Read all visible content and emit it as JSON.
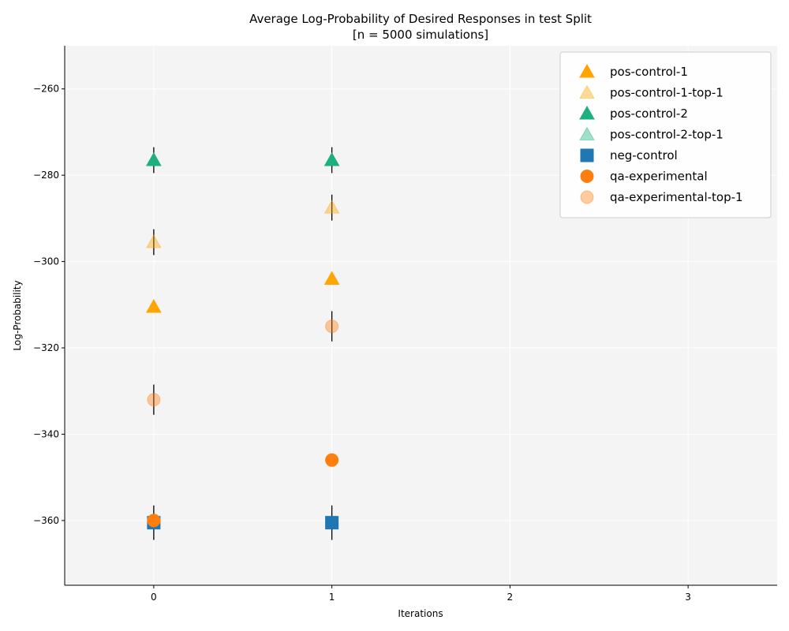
{
  "chart_data": {
    "type": "scatter",
    "title_line1": "Average Log-Probability of Desired Responses in test Split",
    "title_line2": "[n = 5000 simulations]",
    "xlabel": "Iterations",
    "ylabel": "Log-Probability",
    "xlim": [
      -0.5,
      3.5
    ],
    "ylim": [
      -375,
      -250
    ],
    "xticks": [
      0,
      1,
      2,
      3
    ],
    "xtick_labels": [
      "0",
      "1",
      "2",
      "3"
    ],
    "yticks": [
      -260,
      -280,
      -300,
      -320,
      -340,
      -360
    ],
    "ytick_labels": [
      "−260",
      "−280",
      "−300",
      "−320",
      "−340",
      "−360"
    ],
    "grid": true,
    "legend_position": "top-right",
    "series": [
      {
        "name": "pos-control-1",
        "marker": "triangle",
        "color": "#FFA500",
        "opacity": 1.0,
        "x": [
          0,
          1
        ],
        "y": [
          -310.5,
          -304.0
        ],
        "err": [
          1.0,
          1.0
        ]
      },
      {
        "name": "pos-control-1-top-1",
        "marker": "triangle",
        "color": "#FFA500",
        "opacity": 0.4,
        "x": [
          0,
          1
        ],
        "y": [
          -295.5,
          -287.5
        ],
        "err": [
          3.0,
          3.0
        ]
      },
      {
        "name": "pos-control-2",
        "marker": "triangle",
        "color": "#1CB07F",
        "opacity": 1.0,
        "x": [
          0,
          1
        ],
        "y": [
          -276.5,
          -276.5
        ],
        "err": [
          3.0,
          3.0
        ]
      },
      {
        "name": "pos-control-2-top-1",
        "marker": "triangle",
        "color": "#1CB07F",
        "opacity": 0.4,
        "x": [],
        "y": [],
        "err": []
      },
      {
        "name": "neg-control",
        "marker": "square",
        "color": "#1F77B4",
        "opacity": 1.0,
        "x": [
          0,
          1
        ],
        "y": [
          -360.5,
          -360.5
        ],
        "err": [
          4.0,
          4.0
        ]
      },
      {
        "name": "qa-experimental",
        "marker": "circle",
        "color": "#FF7F0E",
        "opacity": 1.0,
        "x": [
          0,
          1
        ],
        "y": [
          -360.0,
          -346.0
        ],
        "err": [
          1.0,
          1.0
        ]
      },
      {
        "name": "qa-experimental-top-1",
        "marker": "circle",
        "color": "#FF7F0E",
        "opacity": 0.4,
        "x": [
          0,
          1
        ],
        "y": [
          -332.0,
          -315.0
        ],
        "err": [
          3.5,
          3.5
        ]
      }
    ]
  }
}
